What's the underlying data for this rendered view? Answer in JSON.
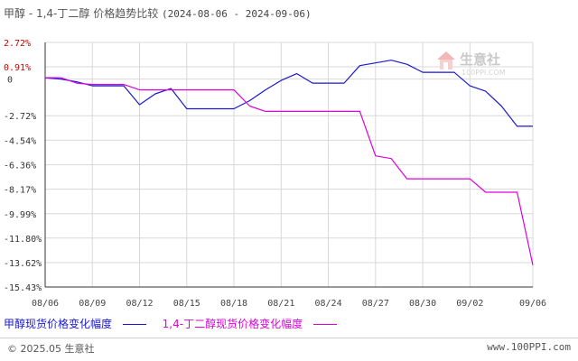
{
  "title": {
    "main": "甲醇 - 1,4-丁二醇 价格趋势比较",
    "range": "(2024-08-06 - 2024-09-06)"
  },
  "watermark": {
    "text": "生意社",
    "sub": "100PPI.COM"
  },
  "legend": {
    "item1": "甲醇现货价格变化幅度",
    "item2": "1,4-丁二醇现货价格变化幅度"
  },
  "footer": {
    "left": "© 2025.05 生意社",
    "right": "www.100PPI.com"
  },
  "colors": {
    "series1": "#1a1acc",
    "series2": "#dd00dd",
    "positive_tick": "#cc0000",
    "negative_tick": "#333333",
    "grid": "#d8d8d8"
  },
  "chart_data": {
    "type": "line",
    "ylim": [
      -15.43,
      2.72
    ],
    "y_ticks": [
      "2.72%",
      "0.91%",
      "0",
      "-2.72%",
      "-4.54%",
      "-6.36%",
      "-8.17%",
      "-9.99%",
      "-11.80%",
      "-13.62%",
      "-15.43%"
    ],
    "y_tick_values": [
      2.72,
      0.91,
      0,
      -2.72,
      -4.54,
      -6.36,
      -8.17,
      -9.99,
      -11.8,
      -13.62,
      -15.43
    ],
    "x_ticks": [
      "08/06",
      "08/09",
      "08/12",
      "08/15",
      "08/18",
      "08/21",
      "08/24",
      "08/27",
      "08/30",
      "09/02",
      "09/06"
    ],
    "x_days": [
      0,
      3,
      6,
      9,
      12,
      15,
      18,
      21,
      24,
      27,
      31
    ],
    "xlim": [
      0,
      31
    ],
    "grid": true,
    "series": [
      {
        "name": "甲醇现货价格变化幅度",
        "x": [
          0,
          1,
          2,
          3,
          4,
          5,
          6,
          7,
          8,
          9,
          10,
          11,
          12,
          13,
          14,
          15,
          16,
          17,
          18,
          19,
          20,
          21,
          22,
          23,
          24,
          25,
          26,
          27,
          28,
          29,
          30,
          31
        ],
        "values": [
          0.1,
          0,
          -0.2,
          -0.5,
          -0.5,
          -0.5,
          -1.9,
          -1.1,
          -0.7,
          -2.2,
          -2.2,
          -2.2,
          -2.2,
          -1.6,
          -0.8,
          -0.1,
          0.4,
          -0.3,
          -0.3,
          -0.3,
          1.0,
          1.2,
          1.4,
          1.1,
          0.5,
          0.5,
          0.5,
          -0.5,
          -0.9,
          -2.0,
          -3.5,
          -3.5
        ]
      },
      {
        "name": "1,4-丁二醇现货价格变化幅度",
        "x": [
          0,
          1,
          2,
          3,
          4,
          5,
          6,
          7,
          8,
          9,
          10,
          11,
          12,
          13,
          14,
          15,
          16,
          17,
          18,
          19,
          20,
          21,
          22,
          23,
          24,
          25,
          26,
          27,
          28,
          29,
          30,
          31
        ],
        "values": [
          0.1,
          0.1,
          -0.3,
          -0.4,
          -0.4,
          -0.4,
          -0.8,
          -0.8,
          -0.8,
          -0.8,
          -0.8,
          -0.8,
          -0.8,
          -2.0,
          -2.4,
          -2.4,
          -2.4,
          -2.4,
          -2.4,
          -2.4,
          -2.4,
          -5.7,
          -5.9,
          -7.4,
          -7.4,
          -7.4,
          -7.4,
          -7.4,
          -8.4,
          -8.4,
          -8.4,
          -13.8
        ]
      }
    ]
  }
}
